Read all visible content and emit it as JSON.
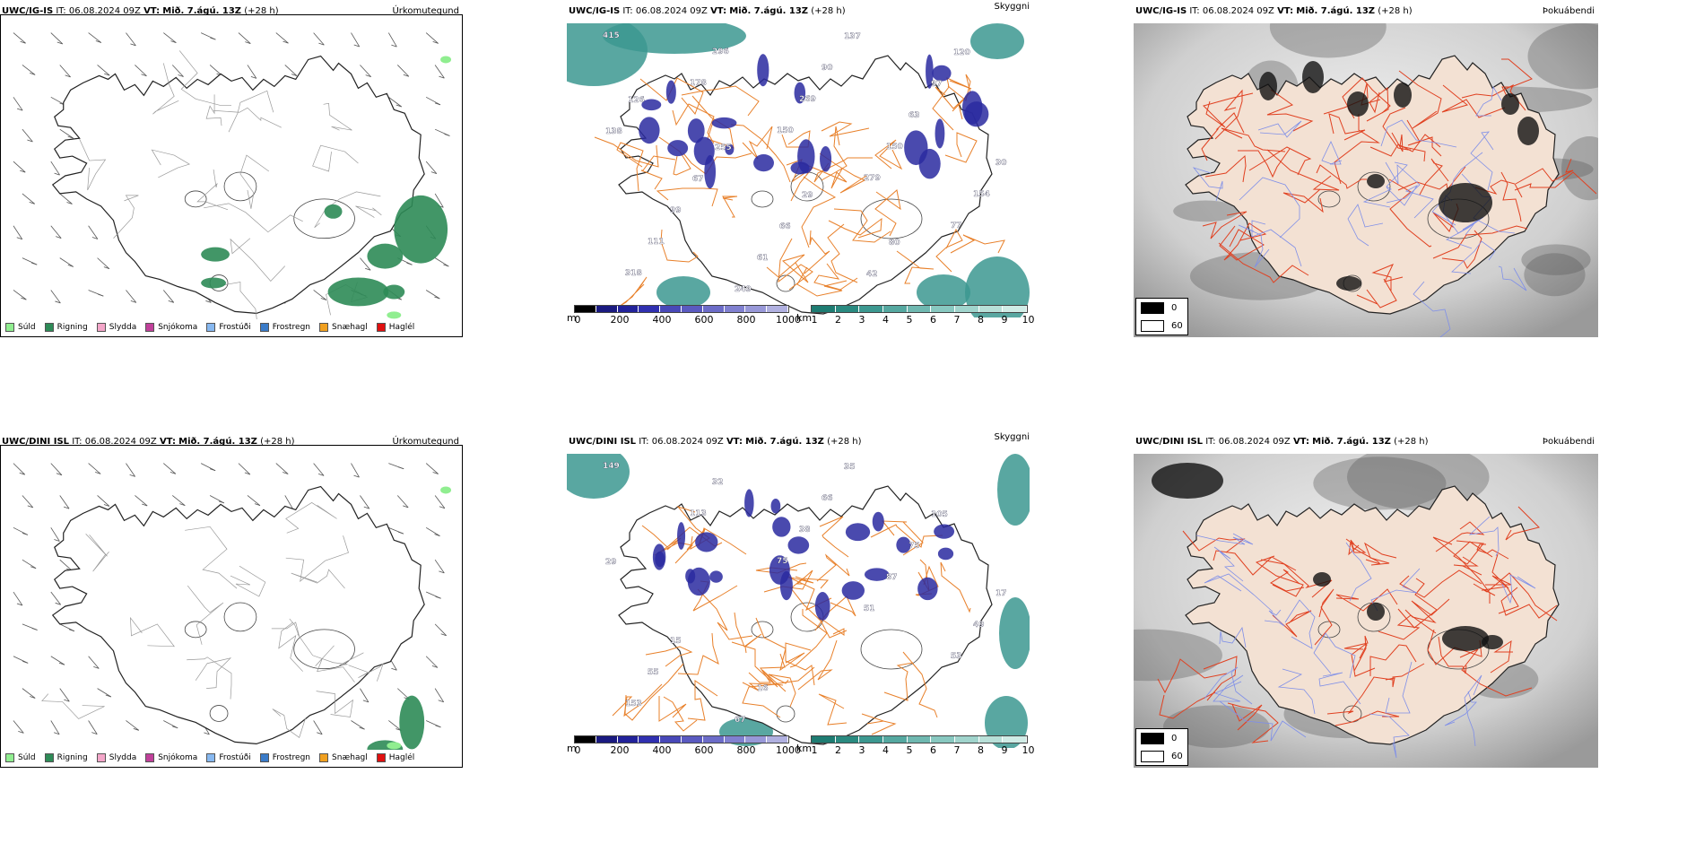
{
  "rows": [
    {
      "model": "UWC/IG-IS",
      "header": {
        "it_label": "IT:",
        "it_value": "06.08.2024 09Z",
        "vt_label": "VT:",
        "vt_value": "Mið. 7.ágú. 13Z",
        "lead": "(+28 h)"
      },
      "titles": [
        "Úrkomutegund",
        "Skyggni",
        "Þokuábendi"
      ],
      "cloud_labels": [
        "415",
        "178",
        "150",
        "279",
        "77",
        "318",
        "296",
        "269",
        "150",
        "154",
        "111",
        "249",
        "90",
        "63",
        "30",
        "99",
        "61",
        "137",
        "97",
        "138",
        "67",
        "66",
        "42",
        "120",
        "126",
        "255",
        "29",
        "80"
      ]
    },
    {
      "model": "UWC/DINI ISL",
      "header": {
        "it_label": "IT:",
        "it_value": "06.08.2024 09Z",
        "vt_label": "VT:",
        "vt_value": "Mið. 7.ágú. 13Z",
        "lead": "(+28 h)"
      },
      "titles": [
        "Úrkomutegund",
        "Skyggni",
        "Þokuábendi"
      ],
      "cloud_labels": [
        "149",
        "113",
        "75",
        "51",
        "53",
        "153",
        "32",
        "38",
        "87",
        "49",
        "55",
        "67",
        "66",
        "75",
        "17",
        "15",
        "16",
        "35",
        "105",
        "29"
      ]
    }
  ],
  "precip_legend": [
    {
      "label": "Súld",
      "color": "#90ee90"
    },
    {
      "label": "Rigning",
      "color": "#2e8b57"
    },
    {
      "label": "Slydda",
      "color": "#f4a6c9"
    },
    {
      "label": "Snjókoma",
      "color": "#c0409a"
    },
    {
      "label": "Frostúði",
      "color": "#87b8f0"
    },
    {
      "label": "Frostregn",
      "color": "#3a7bc8"
    },
    {
      "label": "Snæhagl",
      "color": "#f0a020"
    },
    {
      "label": "Haglél",
      "color": "#e01010"
    }
  ],
  "cloud_scale": {
    "unit": "m",
    "ticks": [
      "0",
      "200",
      "400",
      "600",
      "800",
      "1000"
    ],
    "colors": [
      "#000000",
      "#1a1a80",
      "#22229a",
      "#3030b0",
      "#4848b8",
      "#5a5ac0",
      "#6c6cc8",
      "#8080d0",
      "#9898d8",
      "#b0b0e0"
    ]
  },
  "vis_scale": {
    "unit": "km",
    "ticks": [
      "1",
      "2",
      "3",
      "4",
      "5",
      "6",
      "7",
      "8",
      "9",
      "10"
    ],
    "colors": [
      "#1e7c72",
      "#2a8a80",
      "#3c9890",
      "#55a8a0",
      "#6fb8b0",
      "#88c8c0",
      "#a0d4cc",
      "#b8e0d8",
      "#d0ece6"
    ]
  },
  "fog_key": [
    {
      "value": "0",
      "color": "#000000"
    },
    {
      "value": "60",
      "color": "#ffffff"
    }
  ],
  "colors": {
    "land_fog": "#f3e1d3",
    "road": "#e8802a",
    "road_red": "#e04020",
    "river": "#7f8fe8",
    "precip_rain": "#2e8b57",
    "drizzle": "#90ee90",
    "vis_teal": "#3c9890",
    "cloud_blue": "#2a2aa0"
  }
}
